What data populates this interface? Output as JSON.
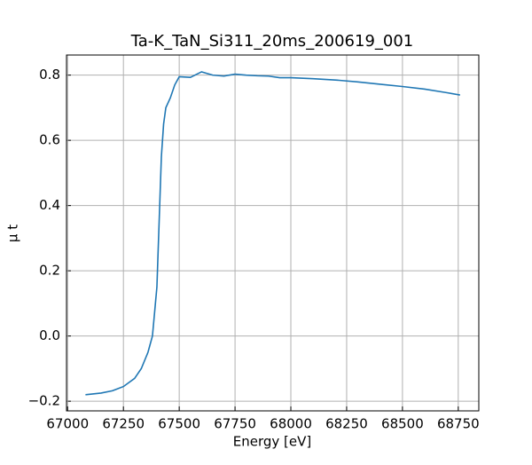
{
  "chart_data": {
    "type": "line",
    "title": "Ta-K_TaN_Si311_20ms_200619_001",
    "x_label": "Energy [eV]",
    "y_label": "μ t",
    "x": [
      67080,
      67150,
      67200,
      67250,
      67300,
      67330,
      67360,
      67380,
      67400,
      67410,
      67420,
      67430,
      67440,
      67460,
      67480,
      67500,
      67550,
      67600,
      67650,
      67700,
      67750,
      67800,
      67850,
      67900,
      67950,
      68000,
      68100,
      68200,
      68300,
      68400,
      68500,
      68600,
      68700,
      68758
    ],
    "series": [
      {
        "color": "#1f77b4",
        "values": [
          -0.18,
          -0.175,
          -0.168,
          -0.155,
          -0.13,
          -0.1,
          -0.05,
          0.0,
          0.15,
          0.35,
          0.55,
          0.65,
          0.7,
          0.73,
          0.77,
          0.795,
          0.793,
          0.81,
          0.8,
          0.797,
          0.803,
          0.8,
          0.798,
          0.797,
          0.792,
          0.792,
          0.789,
          0.785,
          0.779,
          0.772,
          0.765,
          0.757,
          0.746,
          0.739
        ]
      }
    ],
    "xlim": [
      66995,
      68842
    ],
    "ylim": [
      -0.2296,
      0.8616
    ],
    "xticks": [
      67000,
      67250,
      67500,
      67750,
      68000,
      68250,
      68500,
      68750
    ],
    "yticks": [
      {
        "value": -0.2,
        "label": "−0.2"
      },
      {
        "value": 0,
        "label": "0.0"
      },
      0.2,
      0.4,
      0.6,
      0.8
    ],
    "grid": true
  }
}
